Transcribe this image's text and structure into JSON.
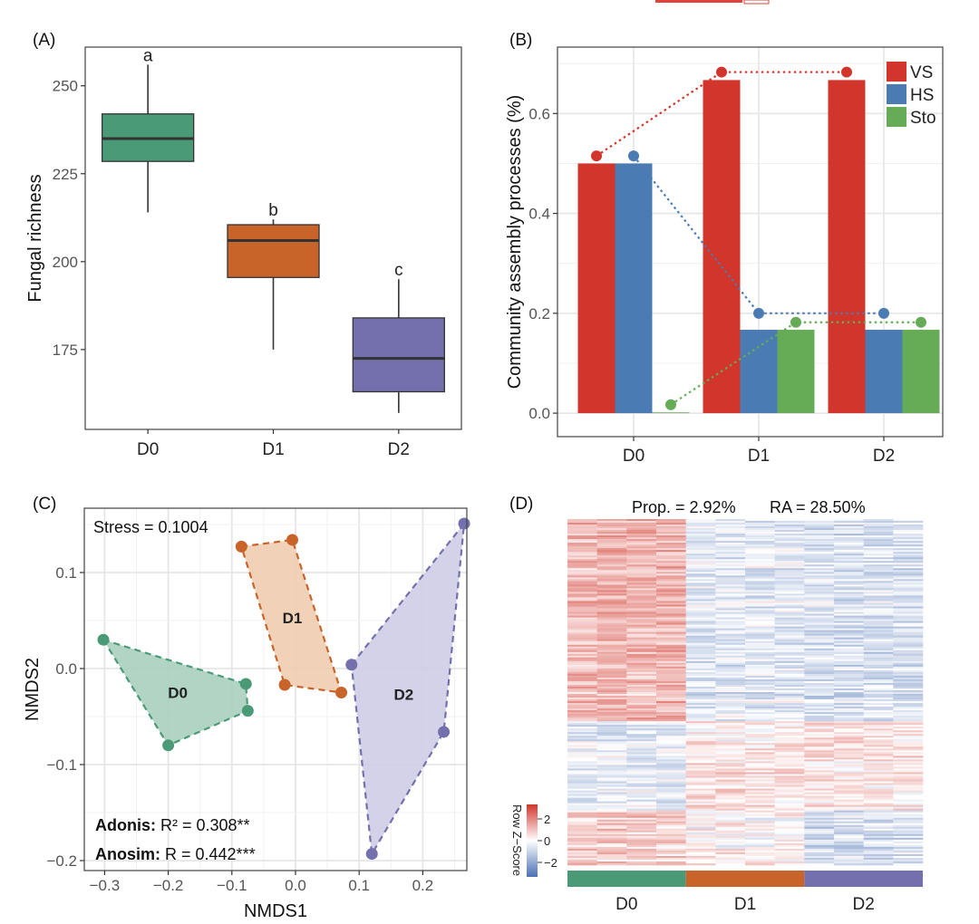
{
  "header_mark": {
    "color": "#e0423e"
  },
  "chart_data": [
    {
      "id": "A",
      "type": "boxplot",
      "panel_label": "(A)",
      "title": "",
      "xlabel": "",
      "ylabel": "Fungal richness",
      "categories": [
        "D0",
        "D1",
        "D2"
      ],
      "yticks": [
        175,
        200,
        225,
        250
      ],
      "ytick_labels": [
        "175",
        "200",
        "225",
        "250"
      ],
      "ylim": [
        152.3,
        261
      ],
      "grid": false,
      "colors": [
        "#4a9a78",
        "#c8642a",
        "#7470ad"
      ],
      "boxes": [
        {
          "category": "D0",
          "whisker_low": 214,
          "q1": 228.5,
          "median": 235,
          "q3": 242,
          "whisker_high": 256,
          "letter": "a"
        },
        {
          "category": "D1",
          "whisker_low": 175,
          "q1": 195.5,
          "median": 206,
          "q3": 210.5,
          "whisker_high": 212,
          "letter": "b"
        },
        {
          "category": "D2",
          "whisker_low": 157,
          "q1": 163,
          "median": 172.5,
          "q3": 184,
          "whisker_high": 195,
          "letter": "c"
        }
      ]
    },
    {
      "id": "B",
      "type": "bar",
      "panel_label": "(B)",
      "title": "",
      "xlabel": "",
      "ylabel": "Community assembly processes (%)",
      "categories": [
        "D0",
        "D1",
        "D2"
      ],
      "yticks": [
        0.0,
        0.2,
        0.4,
        0.6
      ],
      "ytick_labels": [
        "0.0",
        "0.2",
        "0.4",
        "0.6"
      ],
      "ylim": [
        -0.047,
        0.733
      ],
      "grid": true,
      "legend_position": "top-right",
      "series": [
        {
          "name": "VS",
          "color": "#d2352b",
          "values": [
            0.5,
            0.667,
            0.667
          ],
          "line_points": [
            0.515,
            0.683,
            0.683
          ]
        },
        {
          "name": "HS",
          "color": "#4a7bb3",
          "values": [
            0.5,
            0.167,
            0.167
          ],
          "line_points": [
            0.515,
            0.2,
            0.2
          ]
        },
        {
          "name": "Sto",
          "color": "#66ac57",
          "values": [
            0.0,
            0.167,
            0.167
          ],
          "line_points": [
            0.017,
            0.182,
            0.182
          ]
        }
      ]
    },
    {
      "id": "C",
      "type": "scatter",
      "panel_label": "(C)",
      "title": "",
      "xlabel": "NMDS1",
      "ylabel": "NMDS2",
      "xticks": [
        -0.3,
        -0.2,
        -0.1,
        0.0,
        0.1,
        0.2
      ],
      "xtick_labels": [
        "−0.3",
        "−0.2",
        "−0.1",
        "0.0",
        "0.1",
        "0.2"
      ],
      "yticks": [
        -0.2,
        -0.1,
        0.0,
        0.1
      ],
      "ytick_labels": [
        "−0.2",
        "−0.1",
        "0.0",
        "0.1"
      ],
      "xlim": [
        -0.33,
        0.29
      ],
      "ylim": [
        -0.21,
        0.155
      ],
      "grid": true,
      "annotations": {
        "stress": "Stress = 0.1004",
        "adonis_label": "Adonis:",
        "adonis_value": " R² = 0.308**",
        "anosim_label": "Anosim:",
        "anosim_value": " R = 0.442***"
      },
      "groups": [
        {
          "name": "D0",
          "color": "#4a9a78",
          "fill": "#a8cfbe",
          "points": [
            [
              -0.302,
              0.03
            ],
            [
              -0.078,
              -0.016
            ],
            [
              -0.075,
              -0.044
            ],
            [
              -0.2,
              -0.08
            ]
          ],
          "label_pos": [
            -0.185,
            -0.025
          ]
        },
        {
          "name": "D1",
          "color": "#c8642a",
          "fill": "#f0cdb0",
          "points": [
            [
              -0.085,
              0.127
            ],
            [
              -0.005,
              0.134
            ],
            [
              0.072,
              -0.025
            ],
            [
              -0.017,
              -0.017
            ]
          ],
          "label_pos": [
            -0.005,
            0.053
          ]
        },
        {
          "name": "D2",
          "color": "#7470ad",
          "fill": "#cfcde5",
          "points": [
            [
              0.088,
              0.004
            ],
            [
              0.265,
              0.151
            ],
            [
              0.233,
              -0.066
            ],
            [
              0.12,
              -0.193
            ]
          ],
          "label_pos": [
            0.17,
            -0.027
          ]
        }
      ]
    },
    {
      "id": "D",
      "type": "heatmap",
      "panel_label": "(D)",
      "title": "Prop. = 2.92%     RA = 28.50%",
      "title_prop": "Prop. = 2.92%",
      "title_ra": "RA = 28.50%",
      "columns": 12,
      "column_groups": [
        {
          "name": "D0",
          "color": "#4a9a78",
          "n": 4
        },
        {
          "name": "D1",
          "color": "#c8642a",
          "n": 4
        },
        {
          "name": "D2",
          "color": "#7470ad",
          "n": 4
        }
      ],
      "colorbar": {
        "title": "Row Z−Score",
        "ticks": [
          "2",
          "0",
          "−2"
        ],
        "range": [
          -3,
          3
        ],
        "low": "#4a70b4",
        "mid": "#ffffff",
        "high": "#d2352b"
      },
      "pattern_blocks": [
        {
          "rows_frac": [
            0.0,
            0.58
          ],
          "group_means": [
            1.4,
            -0.6,
            -0.8
          ]
        },
        {
          "rows_frac": [
            0.58,
            0.7
          ],
          "group_means": [
            -0.6,
            0.3,
            0.6
          ]
        },
        {
          "rows_frac": [
            0.7,
            0.84
          ],
          "group_means": [
            -0.5,
            0.6,
            0.4
          ]
        },
        {
          "rows_frac": [
            0.84,
            1.0
          ],
          "group_means": [
            0.9,
            0.1,
            -0.9
          ]
        }
      ]
    }
  ]
}
